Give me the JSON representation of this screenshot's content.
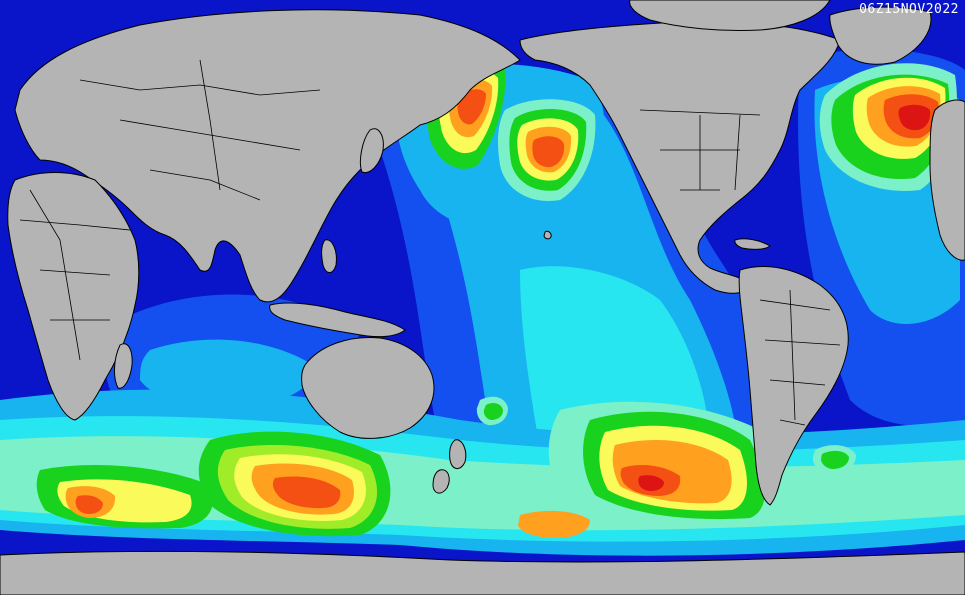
{
  "map": {
    "timestamp": "06Z15NOV2022"
  },
  "colors": {
    "ocean_calm": "#0a14c8",
    "band_blue": "#1450f0",
    "band_sky": "#18b4f0",
    "band_cyan": "#28e6f0",
    "band_aqua": "#7cf0c8",
    "band_green": "#18d21e",
    "band_lime": "#a0ec28",
    "band_yellow": "#fafa5a",
    "band_orange": "#ffa01e",
    "band_red_orange": "#f55014",
    "band_red": "#dc1414",
    "land": "#b4b4b4",
    "borders": "#000000"
  }
}
